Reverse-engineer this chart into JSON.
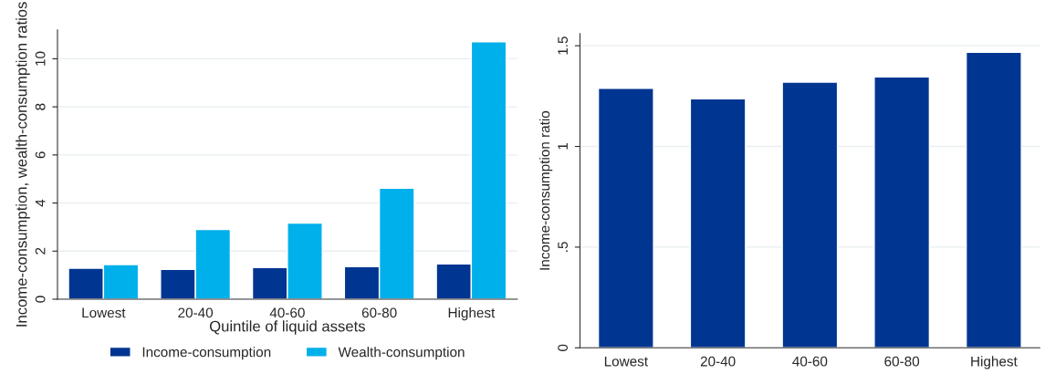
{
  "chart_data": [
    {
      "type": "bar",
      "categories": [
        "Lowest",
        "20-40",
        "40-60",
        "60-80",
        "Highest"
      ],
      "xlabel": "Quintile of liquid assets",
      "ylabel": "Income-consumption, wealth-consumption ratios",
      "ylim": [
        0,
        11.2
      ],
      "yticks": [
        0,
        2,
        4,
        6,
        8,
        10
      ],
      "grid": "y",
      "legend": "bottom",
      "series": [
        {
          "name": "Income-consumption",
          "color": "#003591",
          "values": [
            1.29,
            1.24,
            1.32,
            1.35,
            1.47
          ]
        },
        {
          "name": "Wealth-consumption",
          "color": "#00b0ea",
          "values": [
            1.44,
            2.9,
            3.17,
            4.62,
            10.71
          ]
        }
      ]
    },
    {
      "type": "bar",
      "categories": [
        "Lowest",
        "20-40",
        "40-60",
        "60-80",
        "Highest"
      ],
      "ylabel": "Income-consumption ratio",
      "ylim": [
        0,
        1.56
      ],
      "yticks": [
        0,
        {
          "value": 0.5,
          "label": ".5"
        },
        1,
        1.5
      ],
      "grid": "y",
      "series": [
        {
          "color": "#003591",
          "values": [
            1.289,
            1.236,
            1.319,
            1.345,
            1.468
          ]
        }
      ]
    }
  ]
}
